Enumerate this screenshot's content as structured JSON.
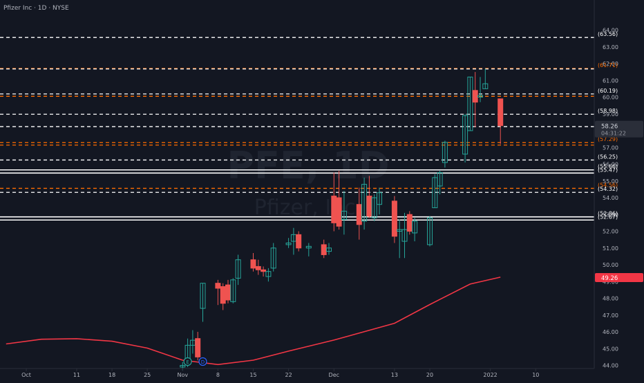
{
  "header": {
    "symbol_text": "Pfizer Inc · 1D · NYSE"
  },
  "watermark": {
    "ticker": "PFE, 1D",
    "name": "Pfizer, Inc."
  },
  "colors": {
    "background": "#131722",
    "up_candle": "#26a69a",
    "down_candle": "#ef5350",
    "moving_average": "#f23645",
    "white_level": "#ffffff",
    "orange_level": "#ff6d00",
    "axis_text": "#b2b5be",
    "last_price_bg": "#f23645"
  },
  "chart_data": {
    "type": "candlestick",
    "title": "Pfizer Inc · 1D · NYSE",
    "ylim": [
      43.95,
      64.25
    ],
    "y_ticks": [
      "44.00",
      "45.00",
      "46.00",
      "47.00",
      "48.00",
      "49.00",
      "50.00",
      "51.00",
      "52.00",
      "53.00",
      "54.00",
      "55.00",
      "56.00",
      "57.00",
      "58.00",
      "59.00",
      "60.00",
      "61.00",
      "62.00",
      "63.00",
      "64.00"
    ],
    "x_tick_labels": [
      {
        "label": "Oct",
        "date": "2021-10-01"
      },
      {
        "label": "11",
        "date": "2021-10-11"
      },
      {
        "label": "18",
        "date": "2021-10-18"
      },
      {
        "label": "25",
        "date": "2021-10-25"
      },
      {
        "label": "Nov",
        "date": "2021-11-01"
      },
      {
        "label": "8",
        "date": "2021-11-08"
      },
      {
        "label": "15",
        "date": "2021-11-15"
      },
      {
        "label": "22",
        "date": "2021-11-22"
      },
      {
        "label": "Dec",
        "date": "2021-12-01"
      },
      {
        "label": "13",
        "date": "2021-12-13"
      },
      {
        "label": "20",
        "date": "2021-12-20"
      },
      {
        "label": "2022",
        "date": "2022-01-01"
      },
      {
        "label": "10",
        "date": "2022-01-10"
      }
    ],
    "candles": [
      {
        "date": "2021-11-01",
        "o": 43.9,
        "h": 44.2,
        "l": 43.7,
        "c": 44.0
      },
      {
        "date": "2021-11-02",
        "o": 44.2,
        "h": 45.6,
        "l": 43.9,
        "c": 45.2
      },
      {
        "date": "2021-11-03",
        "o": 45.2,
        "h": 46.1,
        "l": 44.7,
        "c": 45.5
      },
      {
        "date": "2021-11-04",
        "o": 45.6,
        "h": 46.0,
        "l": 44.3,
        "c": 44.5
      },
      {
        "date": "2021-11-05",
        "o": 47.4,
        "h": 48.9,
        "l": 46.6,
        "c": 48.9
      },
      {
        "date": "2021-11-08",
        "o": 48.9,
        "h": 49.1,
        "l": 47.6,
        "c": 48.6
      },
      {
        "date": "2021-11-09",
        "o": 48.7,
        "h": 48.9,
        "l": 47.3,
        "c": 47.7
      },
      {
        "date": "2021-11-10",
        "o": 48.8,
        "h": 49.1,
        "l": 47.7,
        "c": 47.9
      },
      {
        "date": "2021-11-11",
        "o": 47.8,
        "h": 49.2,
        "l": 47.7,
        "c": 49.1
      },
      {
        "date": "2021-11-12",
        "o": 49.2,
        "h": 50.6,
        "l": 48.8,
        "c": 50.3
      },
      {
        "date": "2021-11-15",
        "o": 50.3,
        "h": 50.7,
        "l": 49.6,
        "c": 49.8
      },
      {
        "date": "2021-11-16",
        "o": 49.9,
        "h": 50.3,
        "l": 49.4,
        "c": 49.7
      },
      {
        "date": "2021-11-17",
        "o": 49.7,
        "h": 49.9,
        "l": 49.3,
        "c": 49.6
      },
      {
        "date": "2021-11-18",
        "o": 49.3,
        "h": 49.8,
        "l": 49.0,
        "c": 49.6
      },
      {
        "date": "2021-11-19",
        "o": 49.8,
        "h": 51.3,
        "l": 49.6,
        "c": 51.0
      },
      {
        "date": "2021-11-22",
        "o": 51.2,
        "h": 51.6,
        "l": 51.0,
        "c": 51.3
      },
      {
        "date": "2021-11-23",
        "o": 51.4,
        "h": 52.2,
        "l": 50.6,
        "c": 51.8
      },
      {
        "date": "2021-11-24",
        "o": 51.8,
        "h": 52.0,
        "l": 50.8,
        "c": 51.0
      },
      {
        "date": "2021-11-26",
        "o": 51.0,
        "h": 51.3,
        "l": 50.5,
        "c": 51.1
      },
      {
        "date": "2021-11-29",
        "o": 51.2,
        "h": 51.5,
        "l": 50.4,
        "c": 50.6
      },
      {
        "date": "2021-11-30",
        "o": 50.8,
        "h": 51.3,
        "l": 50.6,
        "c": 51.0
      },
      {
        "date": "2021-12-01",
        "o": 54.1,
        "h": 55.5,
        "l": 52.0,
        "c": 52.5
      },
      {
        "date": "2021-12-02",
        "o": 54.0,
        "h": 55.6,
        "l": 52.1,
        "c": 52.3
      },
      {
        "date": "2021-12-03",
        "o": 52.7,
        "h": 54.4,
        "l": 51.8,
        "c": 53.2
      },
      {
        "date": "2021-12-06",
        "o": 53.6,
        "h": 54.6,
        "l": 51.5,
        "c": 52.4
      },
      {
        "date": "2021-12-07",
        "o": 52.6,
        "h": 55.2,
        "l": 52.1,
        "c": 54.8
      },
      {
        "date": "2021-12-08",
        "o": 54.1,
        "h": 55.3,
        "l": 52.8,
        "c": 52.9
      },
      {
        "date": "2021-12-09",
        "o": 52.8,
        "h": 54.2,
        "l": 52.6,
        "c": 54.0
      },
      {
        "date": "2021-12-10",
        "o": 53.6,
        "h": 54.6,
        "l": 53.0,
        "c": 54.3
      },
      {
        "date": "2021-12-13",
        "o": 53.8,
        "h": 54.1,
        "l": 51.3,
        "c": 51.7
      },
      {
        "date": "2021-12-14",
        "o": 52.0,
        "h": 52.7,
        "l": 50.4,
        "c": 52.1
      },
      {
        "date": "2021-12-15",
        "o": 51.4,
        "h": 53.1,
        "l": 50.4,
        "c": 52.1
      },
      {
        "date": "2021-12-16",
        "o": 53.0,
        "h": 53.2,
        "l": 51.8,
        "c": 52.0
      },
      {
        "date": "2021-12-17",
        "o": 51.9,
        "h": 52.8,
        "l": 51.4,
        "c": 52.6
      },
      {
        "date": "2021-12-20",
        "o": 51.2,
        "h": 52.9,
        "l": 51.1,
        "c": 52.8
      },
      {
        "date": "2021-12-21",
        "o": 53.4,
        "h": 55.4,
        "l": 53.4,
        "c": 55.2
      },
      {
        "date": "2021-12-22",
        "o": 54.7,
        "h": 55.6,
        "l": 54.2,
        "c": 55.5
      },
      {
        "date": "2021-12-23",
        "o": 56.1,
        "h": 57.4,
        "l": 55.8,
        "c": 57.3
      },
      {
        "date": "2021-12-27",
        "o": 56.6,
        "h": 59.0,
        "l": 56.1,
        "c": 58.9
      },
      {
        "date": "2021-12-28",
        "o": 58.0,
        "h": 61.2,
        "l": 58.0,
        "c": 61.2
      },
      {
        "date": "2021-12-29",
        "o": 60.4,
        "h": 61.5,
        "l": 58.2,
        "c": 59.7
      },
      {
        "date": "2021-12-30",
        "o": 60.0,
        "h": 61.2,
        "l": 59.7,
        "c": 60.1
      },
      {
        "date": "2021-12-31",
        "o": 60.5,
        "h": 61.7,
        "l": 60.5,
        "c": 60.8
      },
      {
        "date": "2022-01-03",
        "o": 59.9,
        "h": 59.9,
        "l": 57.2,
        "c": 58.3
      }
    ],
    "moving_average": [
      {
        "date": "2021-09-27",
        "v": 45.28
      },
      {
        "date": "2021-10-04",
        "v": 45.56
      },
      {
        "date": "2021-10-11",
        "v": 45.59
      },
      {
        "date": "2021-10-18",
        "v": 45.44
      },
      {
        "date": "2021-10-25",
        "v": 45.03
      },
      {
        "date": "2021-11-01",
        "v": 44.31
      },
      {
        "date": "2021-11-08",
        "v": 44.05
      },
      {
        "date": "2021-11-15",
        "v": 44.31
      },
      {
        "date": "2021-11-22",
        "v": 44.85
      },
      {
        "date": "2021-12-01",
        "v": 45.51
      },
      {
        "date": "2021-12-13",
        "v": 46.51
      },
      {
        "date": "2021-12-20",
        "v": 47.63
      },
      {
        "date": "2021-12-28",
        "v": 48.85
      },
      {
        "date": "2022-01-03",
        "v": 49.26
      }
    ],
    "levels": [
      {
        "value": 63.56,
        "color": "white",
        "label": "(63.56)"
      },
      {
        "value": 61.71,
        "color": "orange",
        "label": "(61.71)"
      },
      {
        "value": 61.68,
        "color": "white",
        "label": ""
      },
      {
        "value": 60.19,
        "color": "white",
        "label": "(60.19)"
      },
      {
        "value": 60.05,
        "color": "orange",
        "label": ""
      },
      {
        "value": 58.98,
        "color": "white",
        "label": "(58.98)"
      },
      {
        "value": 58.24,
        "color": "white",
        "label": "(58.24)"
      },
      {
        "value": 57.29,
        "color": "orange",
        "label": "(57.29)"
      },
      {
        "value": 57.14,
        "color": "orange",
        "label": ""
      },
      {
        "value": 56.25,
        "color": "white",
        "label": "(56.25)"
      },
      {
        "value": 55.66,
        "color": "white",
        "label": "(55.66)",
        "solid": true
      },
      {
        "value": 55.47,
        "color": "white",
        "label": "(55.47)",
        "solid": true
      },
      {
        "value": 54.56,
        "color": "orange",
        "label": "(54.56)"
      },
      {
        "value": 54.32,
        "color": "white",
        "label": "(54.32)"
      },
      {
        "value": 52.86,
        "color": "white",
        "label": "(52.86)",
        "solid": true
      },
      {
        "value": 52.67,
        "color": "white",
        "label": "(52.67)",
        "solid": true
      }
    ],
    "last_price": {
      "value": "58.26",
      "countdown": "04:31:22"
    },
    "ma_last": {
      "value": "49.26"
    },
    "markers": [
      {
        "date": "2021-11-02",
        "letter": "E"
      },
      {
        "date": "2021-11-05",
        "letter": "D"
      }
    ]
  }
}
